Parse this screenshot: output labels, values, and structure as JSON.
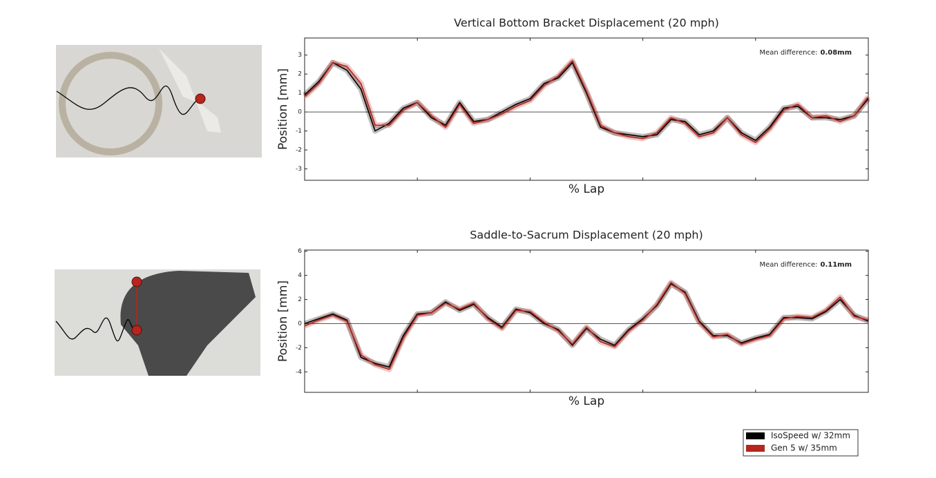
{
  "chart_data": [
    {
      "type": "line",
      "title": "Vertical Bottom Bracket Displacement (20 mph)",
      "xlabel": "% Lap",
      "ylabel": "Position [mm]",
      "annotation_label": "Mean difference:",
      "annotation_value": "0.08mm",
      "x": [
        0,
        2.5,
        5,
        7.5,
        10,
        12.5,
        15,
        17.5,
        20,
        22.5,
        25,
        27.5,
        30,
        32.5,
        35,
        37.5,
        40,
        42.5,
        45,
        47.5,
        50,
        52.5,
        55,
        57.5,
        60,
        62.5,
        65,
        67.5,
        70,
        72.5,
        75,
        77.5,
        80,
        82.5,
        85,
        87.5,
        90,
        92.5,
        95,
        97.5,
        100
      ],
      "xlim": [
        0,
        100
      ],
      "xticks": [
        0,
        20,
        40,
        60,
        80,
        100
      ],
      "ylim": [
        -3.6,
        3.9
      ],
      "yticks": [
        -3,
        -2,
        -1,
        0,
        1,
        2,
        3
      ],
      "series": [
        {
          "name": "IsoSpeed w/ 32mm",
          "color": "#000000",
          "values": [
            0.9,
            1.6,
            2.6,
            2.2,
            1.2,
            -1.0,
            -0.6,
            0.2,
            0.5,
            -0.3,
            -0.7,
            0.5,
            -0.5,
            -0.4,
            0.0,
            0.4,
            0.7,
            1.5,
            1.8,
            2.6,
            1.0,
            -0.8,
            -1.1,
            -1.2,
            -1.3,
            -1.2,
            -0.4,
            -0.5,
            -1.2,
            -1.0,
            -0.3,
            -1.1,
            -1.5,
            -0.8,
            0.2,
            0.3,
            -0.3,
            -0.3,
            -0.4,
            -0.2,
            0.7
          ]
        },
        {
          "name": "Gen 5 w/ 35mm",
          "color": "#b5261e",
          "values": [
            0.8,
            1.5,
            2.6,
            2.4,
            1.5,
            -0.7,
            -0.7,
            0.1,
            0.5,
            -0.2,
            -0.8,
            0.4,
            -0.6,
            -0.4,
            -0.1,
            0.3,
            0.6,
            1.4,
            1.9,
            2.7,
            1.1,
            -0.7,
            -1.1,
            -1.3,
            -1.4,
            -1.1,
            -0.3,
            -0.6,
            -1.3,
            -1.1,
            -0.3,
            -1.2,
            -1.6,
            -0.9,
            0.1,
            0.4,
            -0.3,
            -0.2,
            -0.5,
            -0.2,
            0.8
          ]
        }
      ]
    },
    {
      "type": "line",
      "title": "Saddle-to-Sacrum Displacement (20 mph)",
      "xlabel": "% Lap",
      "ylabel": "Position [mm]",
      "annotation_label": "Mean difference:",
      "annotation_value": "0.11mm",
      "x": [
        0,
        2.5,
        5,
        7.5,
        10,
        12.5,
        15,
        17.5,
        20,
        22.5,
        25,
        27.5,
        30,
        32.5,
        35,
        37.5,
        40,
        42.5,
        45,
        47.5,
        50,
        52.5,
        55,
        57.5,
        60,
        62.5,
        65,
        67.5,
        70,
        72.5,
        75,
        77.5,
        80,
        82.5,
        85,
        87.5,
        90,
        92.5,
        95,
        97.5,
        100
      ],
      "xlim": [
        0,
        100
      ],
      "xticks": [
        0,
        20,
        40,
        60,
        80,
        100
      ],
      "ylim": [
        -5.7,
        6.1
      ],
      "yticks": [
        -4,
        -2,
        0,
        2,
        4,
        6
      ],
      "series": [
        {
          "color": "#000000",
          "values": [
            0.0,
            0.4,
            0.8,
            0.3,
            -2.8,
            -3.3,
            -3.6,
            -1.0,
            0.8,
            0.9,
            1.8,
            1.1,
            1.6,
            0.5,
            -0.3,
            1.2,
            0.9,
            0.0,
            -0.5,
            -1.8,
            -0.4,
            -1.3,
            -1.8,
            -0.5,
            0.4,
            1.5,
            3.3,
            2.6,
            0.2,
            -1.0,
            -1.0,
            -1.6,
            -1.2,
            -0.9,
            0.5,
            0.5,
            0.4,
            1.0,
            2.0,
            0.7,
            0.2
          ]
        },
        {
          "color": "#b5261e",
          "values": [
            -0.2,
            0.3,
            0.7,
            0.2,
            -2.6,
            -3.4,
            -3.8,
            -1.2,
            0.7,
            0.9,
            1.7,
            1.2,
            1.7,
            0.4,
            -0.4,
            1.1,
            1.0,
            0.1,
            -0.6,
            -1.7,
            -0.3,
            -1.5,
            -1.9,
            -0.6,
            0.3,
            1.6,
            3.4,
            2.5,
            0.1,
            -1.1,
            -0.9,
            -1.7,
            -1.3,
            -1.0,
            0.4,
            0.6,
            0.5,
            1.1,
            2.2,
            0.6,
            0.3
          ]
        }
      ]
    }
  ]
}
